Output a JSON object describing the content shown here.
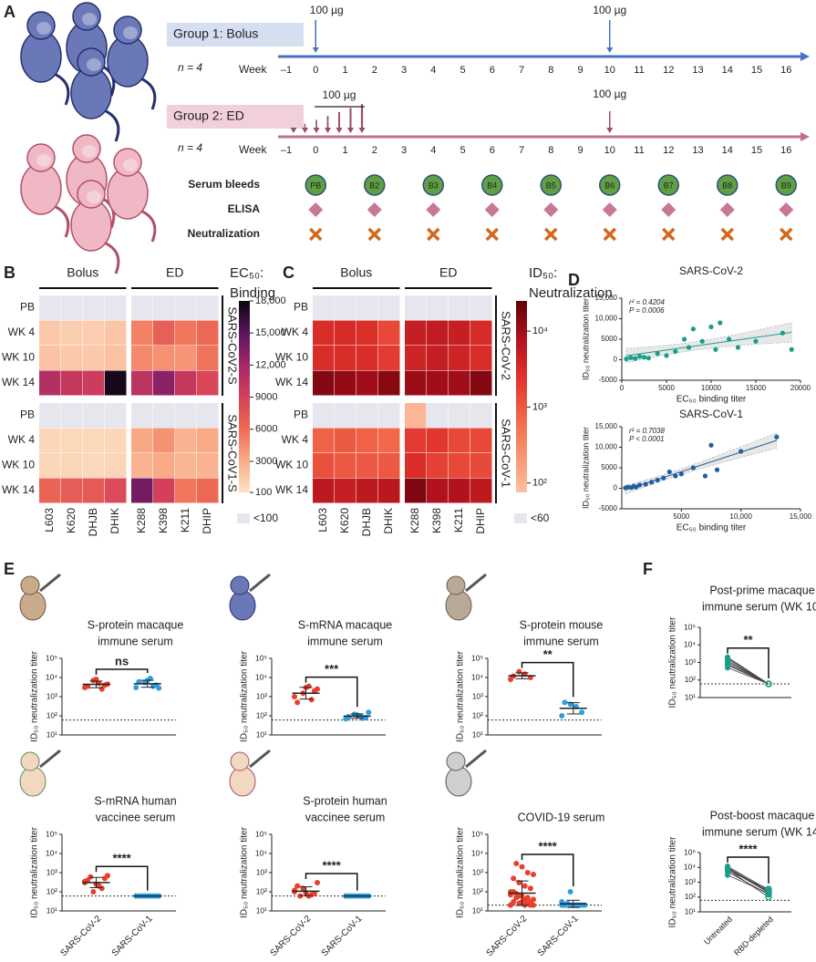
{
  "panel_a": {
    "letter": "A",
    "groups": [
      {
        "label": "Group 1: Bolus",
        "n_label": "n = 4",
        "dose_labels": [
          "100 µg",
          "100 µg"
        ]
      },
      {
        "label": "Group 2: ED",
        "n_label": "n = 4",
        "dose_labels": [
          "100 µg",
          "100 µg"
        ]
      }
    ],
    "week_label": "Week",
    "weeks": [
      "–1",
      "0",
      "1",
      "2",
      "3",
      "4",
      "5",
      "6",
      "7",
      "8",
      "9",
      "10",
      "11",
      "12",
      "13",
      "14",
      "15",
      "16"
    ],
    "rows": [
      "Serum bleeds",
      "ELISA",
      "Neutralization"
    ],
    "bleeds": [
      "PB",
      "B2",
      "B3",
      "B4",
      "B5",
      "B6",
      "B7",
      "B8",
      "B9"
    ]
  },
  "panel_b": {
    "letter": "B",
    "groups": [
      "Bolus",
      "ED"
    ],
    "columns": [
      "L603",
      "K620",
      "DHJB",
      "DHIK",
      "K288",
      "K398",
      "K211",
      "DHIP"
    ],
    "rows": [
      "PB",
      "WK 4",
      "WK 10",
      "WK 14"
    ],
    "blocks": [
      {
        "label": "SARS-CoV2-S",
        "values": [
          [
            null,
            null,
            null,
            null,
            null,
            null,
            null,
            null
          ],
          [
            1500,
            1200,
            1300,
            1600,
            5000,
            6800,
            5500,
            6200
          ],
          [
            1800,
            1500,
            1500,
            1900,
            4600,
            4200,
            4100,
            5600
          ],
          [
            11000,
            10000,
            9500,
            17500,
            10500,
            13000,
            10000,
            8500
          ]
        ]
      },
      {
        "label": "SARS-CoV1-S",
        "values": [
          [
            null,
            null,
            null,
            null,
            null,
            null,
            null,
            null
          ],
          [
            800,
            700,
            700,
            800,
            3200,
            4200,
            2600,
            3100
          ],
          [
            800,
            800,
            700,
            900,
            2600,
            3100,
            2500,
            2600
          ],
          [
            6500,
            7000,
            7200,
            8200,
            14000,
            9000,
            5500,
            6200
          ]
        ]
      }
    ],
    "colorbar_title": [
      "EC₅₀:",
      "Binding"
    ],
    "clim": [
      100,
      18000
    ],
    "log_scale": false,
    "cticks": [
      {
        "value": 18000,
        "label": "18,000"
      },
      {
        "value": 15000,
        "label": "15,000"
      },
      {
        "value": 12000,
        "label": "12,000"
      },
      9000,
      6000,
      3000,
      100
    ],
    "below_label": "<100"
  },
  "panel_c": {
    "letter": "C",
    "groups": [
      "Bolus",
      "ED"
    ],
    "columns": [
      "L603",
      "K620",
      "DHJB",
      "DHIK",
      "K288",
      "K398",
      "K211",
      "DHIP"
    ],
    "rows": [
      "PB",
      "WK 4",
      "WK 10",
      "WK 14"
    ],
    "blocks": [
      {
        "label": "SARS-CoV-2",
        "values": [
          [
            null,
            null,
            null,
            null,
            null,
            null,
            null,
            null
          ],
          [
            3000,
            3200,
            2800,
            1500,
            5000,
            5500,
            5000,
            3200
          ],
          [
            3000,
            3000,
            3000,
            2000,
            4000,
            5000,
            4000,
            3000
          ],
          [
            15000,
            12000,
            10000,
            14000,
            11000,
            10000,
            10000,
            15000
          ]
        ]
      },
      {
        "label": "SARS-CoV-1",
        "values": [
          [
            null,
            null,
            null,
            null,
            100,
            null,
            null,
            null
          ],
          [
            800,
            1000,
            800,
            700,
            2000,
            2200,
            1500,
            1500
          ],
          [
            1200,
            1000,
            1000,
            1000,
            3000,
            1800,
            1500,
            1400
          ],
          [
            6000,
            5000,
            6000,
            6500,
            16000,
            8000,
            8000,
            6000
          ]
        ]
      }
    ],
    "colorbar_title": [
      "ID₅₀:",
      "Neutralization"
    ],
    "clim": [
      75,
      25000
    ],
    "log_scale": true,
    "cticks": [
      {
        "value": 10000,
        "label": "10⁴"
      },
      {
        "value": 1000,
        "label": "10³"
      },
      {
        "value": 100,
        "label": "10²"
      }
    ],
    "below_label": "<60"
  },
  "panel_d": {
    "letter": "D",
    "xlabel": "EC₅₀ binding titer",
    "ylabel": "ID₅₀ neutralization titer",
    "plots": [
      {
        "title": "SARS-CoV-2",
        "stats": [
          "r² = 0.4204",
          "P = 0.0006"
        ],
        "color": "#1a9e8a",
        "x": [
          500,
          1000,
          1500,
          2000,
          2500,
          3000,
          4000,
          5000,
          6000,
          7000,
          7500,
          8000,
          9000,
          10000,
          10500,
          11000,
          12000,
          13000,
          15000,
          18000,
          19000
        ],
        "y": [
          200,
          500,
          300,
          800,
          600,
          400,
          1500,
          1000,
          2000,
          5000,
          3000,
          7500,
          4500,
          8000,
          2500,
          9000,
          5000,
          3000,
          4500,
          6500,
          2500
        ],
        "xlim": [
          0,
          20000
        ],
        "xticks": [
          0,
          5000,
          10000,
          15000,
          20000
        ],
        "ylim": [
          -5000,
          15000
        ],
        "yticks": [
          -5000,
          0,
          5000,
          {
            "value": 10000,
            "label": "10,000"
          },
          {
            "value": 15000,
            "label": "15,000"
          }
        ]
      },
      {
        "title": "SARS-CoV-1",
        "stats": [
          "r² = 0.7038",
          "P < 0.0001"
        ],
        "color": "#1f5f9e",
        "x": [
          300,
          500,
          800,
          1000,
          1200,
          1500,
          2000,
          2500,
          3000,
          3500,
          4000,
          4500,
          5000,
          6000,
          7000,
          7500,
          8000,
          10000,
          13000
        ],
        "y": [
          100,
          300,
          200,
          500,
          300,
          800,
          1000,
          1500,
          2000,
          2500,
          4000,
          3000,
          3500,
          5000,
          3000,
          10500,
          4500,
          9000,
          12500
        ],
        "xlim": [
          0,
          15000
        ],
        "xticks": [
          5000,
          {
            "value": 10000,
            "label": "10,000"
          },
          {
            "value": 15000,
            "label": "15,000"
          }
        ],
        "ylim": [
          -5000,
          15000
        ],
        "yticks": [
          -5000,
          0,
          5000,
          {
            "value": 10000,
            "label": "10,000"
          },
          {
            "value": 15000,
            "label": "15,000"
          }
        ]
      }
    ]
  },
  "panel_e": {
    "letter": "E",
    "ylabel": "ID₅₀ neutralization titer",
    "categories": [
      "SARS-CoV-2",
      "SARS-CoV-1"
    ],
    "colors": [
      "#e8402a",
      "#2a9fe6"
    ],
    "ylim": [
      10,
      100000
    ],
    "yticks": [
      {
        "value": 10,
        "label": "10¹"
      },
      {
        "value": 100,
        "label": "10²"
      },
      {
        "value": 1000,
        "label": "10³"
      },
      {
        "value": 10000,
        "label": "10⁴"
      },
      {
        "value": 100000,
        "label": "10⁵"
      }
    ],
    "plots": [
      {
        "title": [
          "S-protein macaque",
          "immune serum"
        ],
        "significance": "ns",
        "cutoff": 60,
        "groups": [
          [
            3000,
            4000,
            5000,
            7000,
            3500,
            4500,
            2500,
            8000
          ],
          [
            3000,
            4000,
            9000,
            5500,
            6000,
            2800,
            3500,
            7000
          ]
        ]
      },
      {
        "title": [
          "S-mRNA macaque",
          "immune serum"
        ],
        "significance": "***",
        "cutoff": 60,
        "groups": [
          [
            1000,
            2000,
            3500,
            1500,
            500,
            2500,
            700,
            3000
          ],
          [
            70,
            80,
            100,
            120,
            90,
            150,
            75,
            110
          ]
        ]
      },
      {
        "title": [
          "S-protein mouse",
          "immune serum"
        ],
        "significance": "**",
        "cutoff": 60,
        "groups": [
          [
            8000,
            10000,
            15000,
            20000,
            12000
          ],
          [
            100,
            150,
            300,
            400,
            500
          ]
        ]
      },
      {
        "title": [
          "S-mRNA human",
          "vaccinee serum"
        ],
        "significance": "****",
        "cutoff": 60,
        "groups": [
          [
            300,
            500,
            200,
            100,
            400,
            700,
            150,
            250,
            600,
            350
          ],
          [
            60,
            60,
            60,
            60,
            60,
            60,
            60,
            60,
            60,
            60
          ]
        ]
      },
      {
        "title": [
          "S-protein human",
          "vaccinee serum"
        ],
        "significance": "****",
        "cutoff": 60,
        "groups": [
          [
            100,
            80,
            60,
            150,
            200,
            300,
            70,
            90,
            60,
            120
          ],
          [
            60,
            60,
            60,
            60,
            60,
            60,
            60,
            60,
            60,
            60
          ]
        ]
      },
      {
        "title": [
          "COVID-19 serum"
        ],
        "significance": "****",
        "cutoff": 20,
        "groups": [
          [
            20,
            20,
            20,
            25,
            30,
            40,
            50,
            60,
            80,
            100,
            150,
            200,
            300,
            500,
            800,
            1000,
            2000,
            3000,
            20,
            30,
            40,
            60,
            100,
            20,
            25,
            30,
            50,
            70
          ],
          [
            20,
            20,
            20,
            20,
            20,
            20,
            20,
            20,
            25,
            30,
            20,
            20,
            100,
            20
          ]
        ]
      }
    ]
  },
  "panel_f": {
    "letter": "F",
    "ylabel": "ID₅₀ neutralization titer",
    "categories": [
      "Untreated",
      "RBD-depleted"
    ],
    "color": "#1a9e8a",
    "ylim": [
      10,
      100000
    ],
    "yticks": [
      {
        "value": 10,
        "label": "10¹"
      },
      {
        "value": 100,
        "label": "10²"
      },
      {
        "value": 1000,
        "label": "10³"
      },
      {
        "value": 10000,
        "label": "10⁴"
      },
      {
        "value": 100000,
        "label": "10⁵"
      }
    ],
    "plots": [
      {
        "title": [
          "Post-prime macaque",
          "immune serum (WK 10)"
        ],
        "significance": "**",
        "cutoff": 60,
        "groups": [
          [
            500,
            800,
            1000,
            1500,
            2000,
            1200,
            700,
            1800
          ],
          [
            60,
            60,
            60,
            60,
            60,
            60,
            60,
            60
          ]
        ]
      },
      {
        "title": [
          "Post-boost macaque",
          "immune serum (WK 14)"
        ],
        "significance": "****",
        "cutoff": 60,
        "groups": [
          [
            5000,
            8000,
            10000,
            12000,
            7000,
            3000,
            9000,
            6000
          ],
          [
            150,
            200,
            250,
            300,
            100,
            180,
            220,
            350
          ]
        ]
      }
    ]
  }
}
